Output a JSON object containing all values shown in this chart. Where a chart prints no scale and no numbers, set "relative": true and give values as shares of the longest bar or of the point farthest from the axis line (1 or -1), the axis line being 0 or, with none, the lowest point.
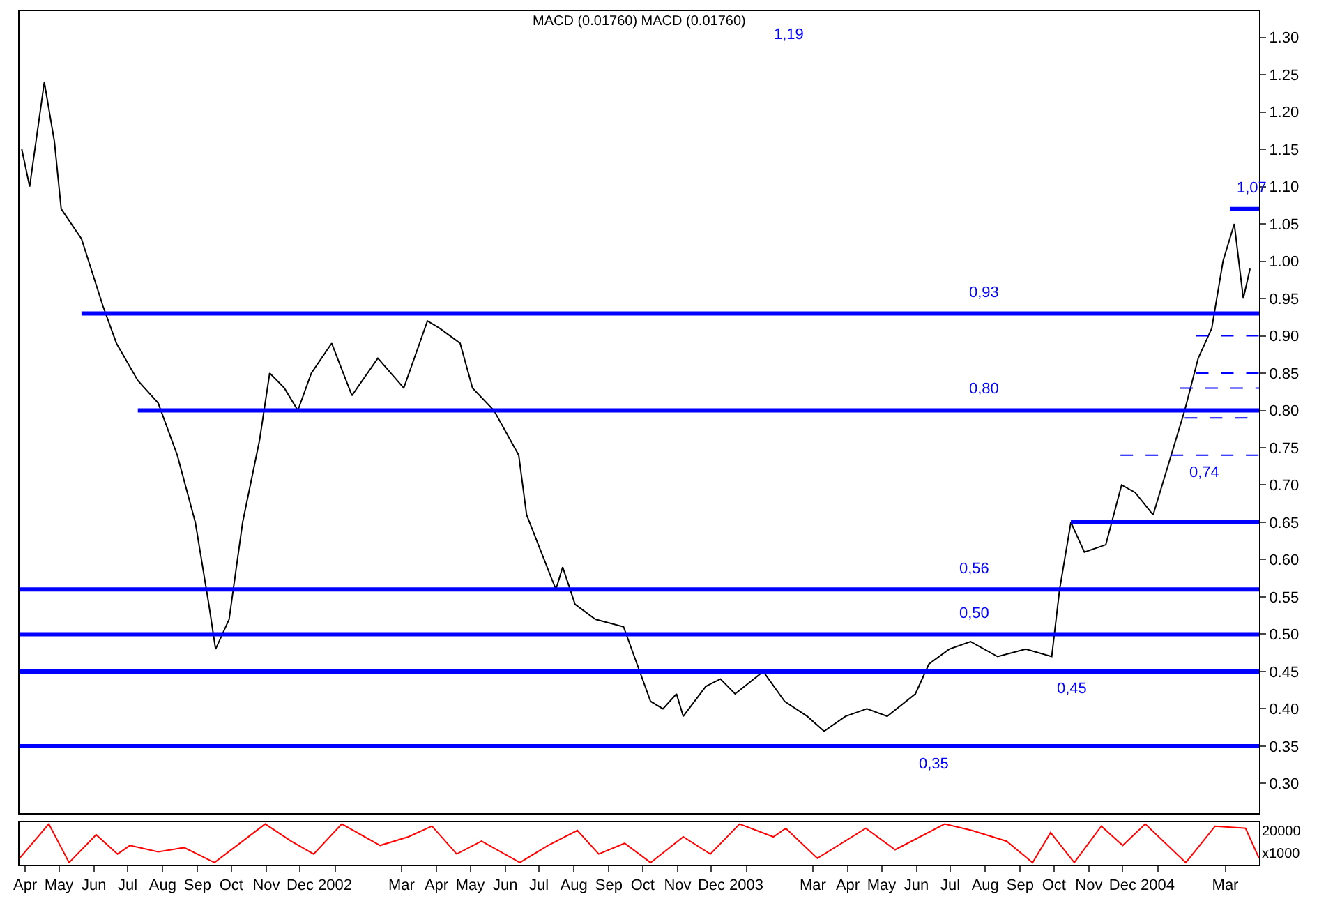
{
  "chart_data": [
    {
      "type": "line",
      "title": "MACD (0.01760) MACD (0.01760)",
      "xlim": [
        "2001-03-27",
        "2004-03-31"
      ],
      "ylim": [
        0.26,
        1.335
      ],
      "yticks": [
        {
          "value": 0.3,
          "label": "0.30"
        },
        {
          "value": 0.35,
          "label": "0.35"
        },
        {
          "value": 0.4,
          "label": "0.40"
        },
        {
          "value": 0.45,
          "label": "0.45"
        },
        {
          "value": 0.5,
          "label": "0.50"
        },
        {
          "value": 0.55,
          "label": "0.55"
        },
        {
          "value": 0.6,
          "label": "0.60"
        },
        {
          "value": 0.65,
          "label": "0.65"
        },
        {
          "value": 0.7,
          "label": "0.70"
        },
        {
          "value": 0.75,
          "label": "0.75"
        },
        {
          "value": 0.8,
          "label": "0.80"
        },
        {
          "value": 0.85,
          "label": "0.85"
        },
        {
          "value": 0.9,
          "label": "0.90"
        },
        {
          "value": 0.95,
          "label": "0.95"
        },
        {
          "value": 1.0,
          "label": "1.00"
        },
        {
          "value": 1.05,
          "label": "1.05"
        },
        {
          "value": 1.1,
          "label": "1.10"
        },
        {
          "value": 1.15,
          "label": "1.15"
        },
        {
          "value": 1.2,
          "label": "1.20"
        },
        {
          "value": 1.25,
          "label": "1.25"
        },
        {
          "value": 1.3,
          "label": "1.30"
        }
      ],
      "tick_labels": "y",
      "series": [
        {
          "color": "#000000",
          "x": [
            "2001-03-29",
            "2001-04-05",
            "2001-04-18",
            "2001-04-27",
            "2001-05-03",
            "2001-05-21",
            "2001-06-09",
            "2001-06-21",
            "2001-07-10",
            "2001-07-28",
            "2001-08-14",
            "2001-08-30",
            "2001-09-11",
            "2001-09-17",
            "2001-09-29",
            "2001-10-11",
            "2001-10-26",
            "2001-11-04",
            "2001-11-17",
            "2001-11-29",
            "2001-12-11",
            "2001-12-29",
            "2002-01-16",
            "2002-02-08",
            "2002-03-03",
            "2002-03-24",
            "2002-04-04",
            "2002-04-22",
            "2002-05-03",
            "2002-05-22",
            "2002-06-13",
            "2002-06-20",
            "2002-07-03",
            "2002-07-16",
            "2002-07-22",
            "2002-08-02",
            "2002-08-20",
            "2002-09-14",
            "2002-09-26",
            "2002-10-08",
            "2002-10-19",
            "2002-10-31",
            "2002-11-06",
            "2002-11-26",
            "2002-12-09",
            "2002-12-22",
            "2003-01-16",
            "2003-02-04",
            "2003-02-24",
            "2003-03-11",
            "2003-03-30",
            "2003-04-18",
            "2003-05-06",
            "2003-05-31",
            "2003-06-12",
            "2003-06-30",
            "2003-07-19",
            "2003-08-12",
            "2003-09-06",
            "2003-09-29",
            "2003-10-06",
            "2003-10-16",
            "2003-10-28",
            "2003-11-16",
            "2003-11-30",
            "2003-12-12",
            "2003-12-28",
            "2004-01-13",
            "2004-01-25",
            "2004-02-06",
            "2004-02-18",
            "2004-02-28",
            "2004-03-09",
            "2004-03-17",
            "2004-03-23"
          ],
          "values": [
            1.15,
            1.1,
            1.24,
            1.16,
            1.07,
            1.03,
            0.94,
            0.89,
            0.84,
            0.81,
            0.74,
            0.65,
            0.54,
            0.48,
            0.52,
            0.65,
            0.76,
            0.85,
            0.83,
            0.8,
            0.85,
            0.89,
            0.82,
            0.87,
            0.83,
            0.92,
            0.91,
            0.89,
            0.83,
            0.8,
            0.74,
            0.66,
            0.61,
            0.56,
            0.59,
            0.54,
            0.52,
            0.51,
            0.46,
            0.41,
            0.4,
            0.42,
            0.39,
            0.43,
            0.44,
            0.42,
            0.45,
            0.41,
            0.39,
            0.37,
            0.39,
            0.4,
            0.39,
            0.42,
            0.46,
            0.48,
            0.49,
            0.47,
            0.48,
            0.47,
            0.56,
            0.65,
            0.61,
            0.62,
            0.7,
            0.69,
            0.66,
            0.74,
            0.8,
            0.87,
            0.91,
            1.0,
            1.05,
            0.95,
            0.99
          ]
        },
        {
          "color": "#0000ff",
          "line_style": "solid",
          "x": [
            "2001-05-21",
            "2004-03-31"
          ],
          "values": [
            0.93,
            0.93
          ]
        },
        {
          "color": "#0000ff",
          "line_style": "solid",
          "x": [
            "2001-07-10",
            "2004-03-31"
          ],
          "values": [
            0.8,
            0.8
          ]
        },
        {
          "color": "#0000ff",
          "line_style": "solid",
          "x": [
            "2003-10-16",
            "2004-03-31"
          ],
          "values": [
            0.65,
            0.65
          ]
        },
        {
          "color": "#0000ff",
          "line_style": "solid",
          "x": [
            "2004-03-05",
            "2004-03-31"
          ],
          "values": [
            1.07,
            1.07
          ]
        },
        {
          "color": "#0000ff",
          "line_style": "dashed",
          "x": [
            "2004-02-04",
            "2004-03-31"
          ],
          "values": [
            0.9,
            0.9
          ]
        },
        {
          "color": "#0000ff",
          "line_style": "dashed",
          "x": [
            "2004-02-04",
            "2004-03-31"
          ],
          "values": [
            0.85,
            0.85
          ]
        },
        {
          "color": "#0000ff",
          "line_style": "dashed",
          "x": [
            "2004-01-21",
            "2004-03-31"
          ],
          "values": [
            0.83,
            0.83
          ]
        },
        {
          "color": "#0000ff",
          "line_style": "dashed",
          "x": [
            "2004-01-25",
            "2004-03-31"
          ],
          "values": [
            0.79,
            0.79
          ]
        },
        {
          "color": "#0000ff",
          "line_style": "dashed",
          "x": [
            "2003-11-29",
            "2004-03-31"
          ],
          "values": [
            0.74,
            0.74
          ]
        }
      ],
      "ref_lines": [
        {
          "axis": "y",
          "value": 0.56,
          "color": "#0000ff"
        },
        {
          "axis": "y",
          "value": 0.5,
          "color": "#0000ff"
        },
        {
          "axis": "y",
          "value": 0.45,
          "color": "#0000ff"
        },
        {
          "axis": "y",
          "value": 0.35,
          "color": "#0000ff"
        }
      ],
      "annotations": [
        "1,19",
        {
          "text": "1,07",
          "x": "2004-03-24",
          "y": 1.07
        },
        {
          "text": "0,93",
          "x": "2003-07-31",
          "y": 0.93
        },
        {
          "text": "0,80",
          "x": "2003-07-30",
          "y": 0.8
        },
        {
          "text": "0,74",
          "x": "2004-02-11",
          "y": 0.74
        },
        {
          "text": "0,56",
          "x": "2003-07-22",
          "y": 0.56
        },
        {
          "text": "0,50",
          "x": "2003-07-22",
          "y": 0.5
        },
        {
          "text": "0,45",
          "x": "2003-10-16",
          "y": 0.45
        },
        {
          "text": "0,35",
          "x": "2003-06-16",
          "y": 0.35
        }
      ]
    },
    {
      "type": "line",
      "relative": true,
      "tick_labels": "x",
      "xlim": [
        "2001-03-27",
        "2004-03-31"
      ],
      "xticks": [
        {
          "value": "2001-04-01",
          "label": "Apr"
        },
        {
          "value": "2001-05-01",
          "label": "May"
        },
        {
          "value": "2001-06-01",
          "label": "Jun"
        },
        {
          "value": "2001-07-01",
          "label": "Jul"
        },
        {
          "value": "2001-08-01",
          "label": "Aug"
        },
        {
          "value": "2001-09-01",
          "label": "Sep"
        },
        {
          "value": "2001-10-01",
          "label": "Oct"
        },
        {
          "value": "2001-11-01",
          "label": "Nov"
        },
        {
          "value": "2001-12-01",
          "label": "Dec"
        },
        {
          "value": "2002-01-01",
          "label": "2002"
        },
        {
          "value": "2002-03-01",
          "label": "Mar"
        },
        {
          "value": "2002-04-01",
          "label": "Apr"
        },
        {
          "value": "2002-05-01",
          "label": "May"
        },
        {
          "value": "2002-06-01",
          "label": "Jun"
        },
        {
          "value": "2002-07-01",
          "label": "Jul"
        },
        {
          "value": "2002-08-01",
          "label": "Aug"
        },
        {
          "value": "2002-09-01",
          "label": "Sep"
        },
        {
          "value": "2002-10-01",
          "label": "Oct"
        },
        {
          "value": "2002-11-01",
          "label": "Nov"
        },
        {
          "value": "2002-12-01",
          "label": "Dec"
        },
        {
          "value": "2003-01-01",
          "label": "2003"
        },
        {
          "value": "2003-03-01",
          "label": "Mar"
        },
        {
          "value": "2003-04-01",
          "label": "Apr"
        },
        {
          "value": "2003-05-01",
          "label": "May"
        },
        {
          "value": "2003-06-01",
          "label": "Jun"
        },
        {
          "value": "2003-07-01",
          "label": "Jul"
        },
        {
          "value": "2003-08-01",
          "label": "Aug"
        },
        {
          "value": "2003-09-01",
          "label": "Sep"
        },
        {
          "value": "2003-10-01",
          "label": "Oct"
        },
        {
          "value": "2003-11-01",
          "label": "Nov"
        },
        {
          "value": "2003-12-01",
          "label": "Dec"
        },
        {
          "value": "2004-01-01",
          "label": "2004"
        },
        {
          "value": "2004-03-01",
          "label": "Mar"
        }
      ],
      "series": [
        {
          "color": "#ff0000",
          "x": [
            "2001-03-27",
            "2001-04-22",
            "2001-05-10",
            "2001-06-03",
            "2001-06-22",
            "2001-07-03",
            "2001-07-28",
            "2001-08-20",
            "2001-09-16",
            "2001-10-31",
            "2001-11-23",
            "2001-12-13",
            "2002-01-07",
            "2002-02-10",
            "2002-03-07",
            "2002-03-28",
            "2002-04-19",
            "2002-05-11",
            "2002-06-14",
            "2002-07-09",
            "2002-08-04",
            "2002-08-23",
            "2002-09-15",
            "2002-10-08",
            "2002-11-06",
            "2002-11-30",
            "2002-12-26",
            "2003-01-25",
            "2003-02-05",
            "2003-03-05",
            "2003-04-17",
            "2003-05-13",
            "2003-06-26",
            "2003-07-20",
            "2003-08-20",
            "2003-09-12",
            "2003-09-28",
            "2003-10-19",
            "2003-11-12",
            "2003-12-01",
            "2003-12-21",
            "2004-01-26",
            "2004-02-21",
            "2004-03-19",
            "2004-03-31"
          ],
          "values": [
            0.2,
            1.0,
            0.1,
            0.75,
            0.3,
            0.5,
            0.35,
            0.45,
            0.1,
            1.0,
            0.6,
            0.3,
            1.0,
            0.5,
            0.7,
            0.95,
            0.3,
            0.6,
            0.1,
            0.5,
            0.85,
            0.3,
            0.55,
            0.1,
            0.7,
            0.3,
            1.0,
            0.7,
            0.9,
            0.2,
            0.9,
            0.4,
            1.0,
            0.85,
            0.6,
            0.1,
            0.8,
            0.1,
            0.95,
            0.5,
            1.0,
            0.1,
            0.95,
            0.9,
            0.2
          ]
        }
      ],
      "annotations": [
        "20000",
        "x1000"
      ]
    }
  ]
}
